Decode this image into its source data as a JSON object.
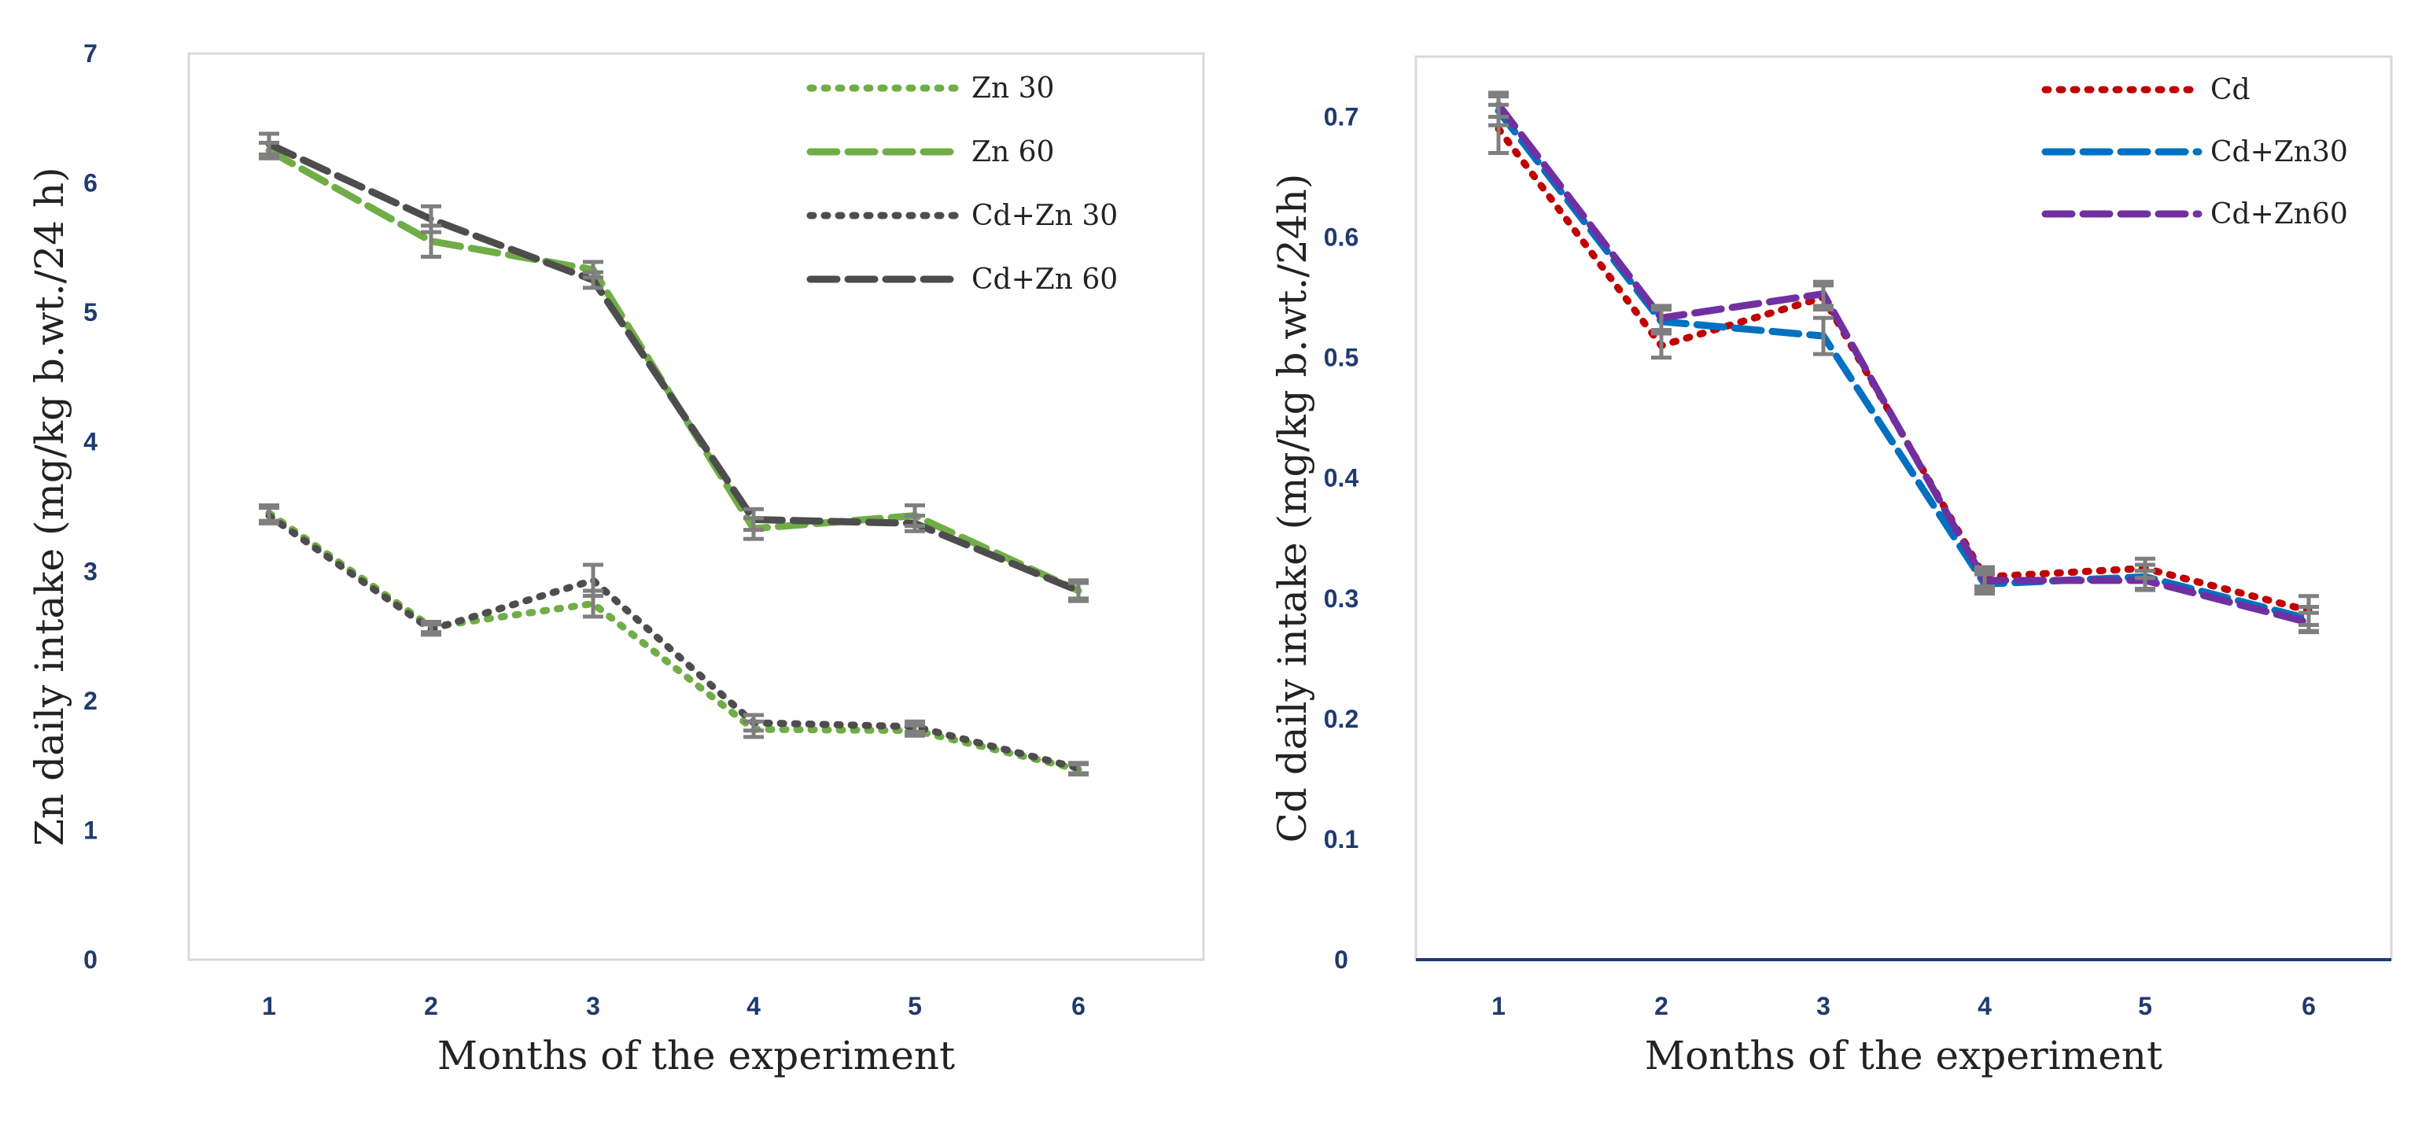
{
  "chart_data": [
    {
      "type": "line",
      "title": "",
      "xlabel": "Months of the experiment",
      "ylabel": "Zn daily intake (mg/kg b.wt./24 h)",
      "categories": [
        "1",
        "2",
        "3",
        "4",
        "5",
        "6"
      ],
      "ylim": [
        0,
        7
      ],
      "yticks": [
        "0",
        "1",
        "2",
        "3",
        "4",
        "5",
        "6",
        "7"
      ],
      "grid": false,
      "legend_position": "top-right",
      "series": [
        {
          "name": "Zn 30",
          "color": "#70ad47",
          "dash": "dotted",
          "values": [
            3.45,
            2.57,
            2.75,
            1.78,
            1.77,
            1.47
          ],
          "errors": [
            0.06,
            0.04,
            0.1,
            0.06,
            0.04,
            0.04
          ]
        },
        {
          "name": "Zn 60",
          "color": "#70ad47",
          "dash": "dashed",
          "values": [
            6.25,
            5.55,
            5.33,
            3.33,
            3.43,
            2.85
          ],
          "errors": [
            0.06,
            0.12,
            0.06,
            0.08,
            0.08,
            0.06
          ]
        },
        {
          "name": "Cd+Zn 30",
          "color": "#4d4d4d",
          "dash": "dotted",
          "values": [
            3.43,
            2.55,
            2.93,
            1.83,
            1.8,
            1.48
          ],
          "errors": [
            0.06,
            0.04,
            0.12,
            0.06,
            0.04,
            0.04
          ]
        },
        {
          "name": "Cd+Zn 60",
          "color": "#4d4d4d",
          "dash": "dashed",
          "values": [
            6.3,
            5.72,
            5.25,
            3.4,
            3.37,
            2.85
          ],
          "errors": [
            0.08,
            0.1,
            0.06,
            0.08,
            0.06,
            0.08
          ]
        }
      ]
    },
    {
      "type": "line",
      "title": "",
      "xlabel": "Months of the experiment",
      "ylabel": "Cd daily intake (mg/kg b.wt./24h)",
      "categories": [
        "1",
        "2",
        "3",
        "4",
        "5",
        "6"
      ],
      "ylim": [
        0,
        0.75
      ],
      "yticks": [
        "0",
        "0.1",
        "0.2",
        "0.3",
        "0.4",
        "0.5",
        "0.6",
        "0.7"
      ],
      "grid": false,
      "legend_position": "top-right",
      "series": [
        {
          "name": "Cd",
          "color": "#c00000",
          "dash": "dotted",
          "values": [
            0.69,
            0.51,
            0.55,
            0.318,
            0.325,
            0.29
          ],
          "errors": [
            0.02,
            0.01,
            0.01,
            0.008,
            0.008,
            0.012
          ]
        },
        {
          "name": "Cd+Zn30",
          "color": "#0070c0",
          "dash": "dashed",
          "values": [
            0.705,
            0.53,
            0.518,
            0.312,
            0.318,
            0.283
          ],
          "errors": [
            0.012,
            0.01,
            0.015,
            0.008,
            0.01,
            0.01
          ]
        },
        {
          "name": "Cd+Zn60",
          "color": "#7030a0",
          "dash": "dashed",
          "values": [
            0.71,
            0.533,
            0.553,
            0.315,
            0.315,
            0.28
          ],
          "errors": [
            0.01,
            0.01,
            0.01,
            0.008,
            0.008,
            0.008
          ]
        }
      ]
    }
  ]
}
